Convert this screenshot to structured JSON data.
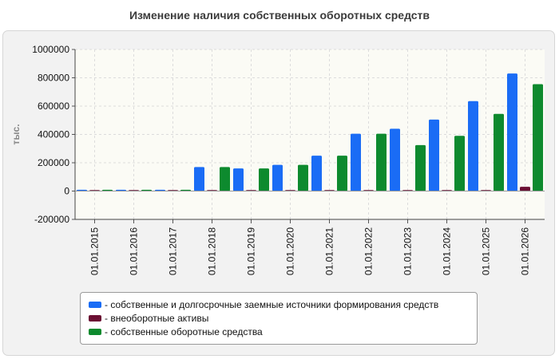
{
  "chart_data": {
    "type": "bar",
    "title": "Изменение наличия собственных оборотных средств",
    "ylabel": "тыс.",
    "xlabel": "",
    "ylim": [
      -200000,
      1000000
    ],
    "yticks": [
      -200000,
      0,
      200000,
      400000,
      600000,
      800000,
      1000000
    ],
    "grid": true,
    "legend_position": "bottom",
    "categories": [
      "01.01.2015",
      "01.01.2016",
      "01.01.2017",
      "01.01.2018",
      "01.01.2019",
      "01.01.2020",
      "01.01.2021",
      "01.01.2022",
      "01.01.2023",
      "01.01.2024",
      "01.01.2025",
      "01.01.2026"
    ],
    "series": [
      {
        "name": "- собственные и долгосрочные заемные источники формирования средств",
        "color": "#1a6cf5",
        "values": [
          5000,
          5000,
          5000,
          170000,
          160000,
          185000,
          250000,
          405000,
          440000,
          505000,
          635000,
          830000
        ]
      },
      {
        "name": "- внеоборотные активы",
        "color": "#6b0f33",
        "values": [
          3000,
          3000,
          3000,
          3000,
          3000,
          3000,
          3000,
          3000,
          3000,
          3000,
          3000,
          30000
        ]
      },
      {
        "name": "- собственные оборотные средства",
        "color": "#0d8a2e",
        "values": [
          5000,
          5000,
          5000,
          170000,
          160000,
          185000,
          250000,
          405000,
          325000,
          390000,
          545000,
          755000
        ]
      }
    ]
  }
}
